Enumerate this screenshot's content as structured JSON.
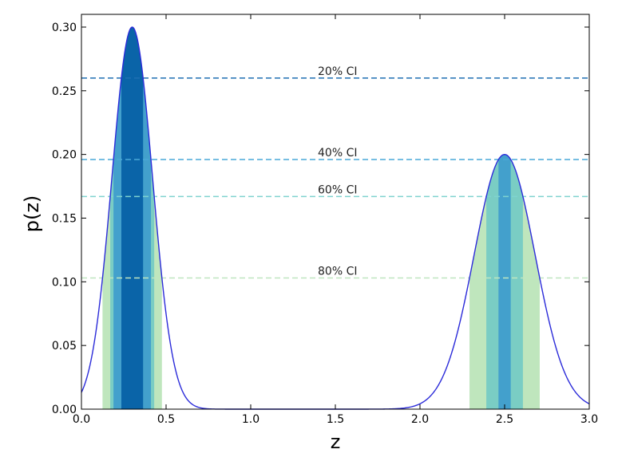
{
  "chart_data": {
    "type": "area",
    "title": "",
    "xlabel": "z",
    "ylabel": "p(z)",
    "xlim": [
      0.0,
      3.0
    ],
    "ylim": [
      0.0,
      0.31
    ],
    "grid": false,
    "x_ticks": [
      "0.0",
      "0.5",
      "1.0",
      "1.5",
      "2.0",
      "2.5",
      "3.0"
    ],
    "y_ticks": [
      "0.00",
      "0.05",
      "0.10",
      "0.15",
      "0.20",
      "0.25",
      "0.30"
    ],
    "density": {
      "components": [
        {
          "mean": 0.3,
          "sigma": 0.12,
          "peak": 0.3
        },
        {
          "mean": 2.5,
          "sigma": 0.18,
          "peak": 0.2
        }
      ],
      "line_color": "#2b2bd9"
    },
    "credible_intervals": [
      {
        "label": "20% CI",
        "threshold": 0.26,
        "color": "#1f6fb2",
        "fill": "#0a64a8"
      },
      {
        "label": "40% CI",
        "threshold": 0.196,
        "color": "#4aa8d8",
        "fill": "#43a0cc"
      },
      {
        "label": "60% CI",
        "threshold": 0.167,
        "color": "#7fd3cf",
        "fill": "#7acdc4"
      },
      {
        "label": "80% CI",
        "threshold": 0.103,
        "color": "#bfe6c0",
        "fill": "#bfe6bd"
      }
    ]
  }
}
